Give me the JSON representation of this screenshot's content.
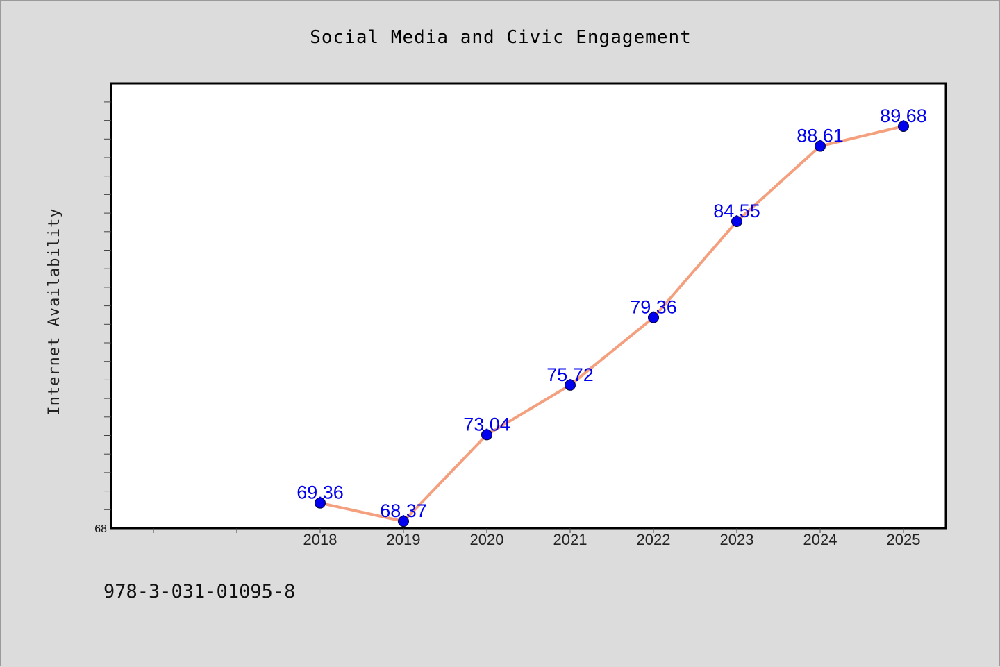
{
  "chart_data": {
    "type": "line",
    "title": "Social Media and Civic Engagement",
    "xlabel": "",
    "ylabel": "Internet Availability",
    "categories": [
      "2018",
      "2019",
      "2020",
      "2021",
      "2022",
      "2023",
      "2024",
      "2025"
    ],
    "series": [
      {
        "values": [
          69.36,
          68.37,
          73.04,
          75.72,
          79.36,
          84.55,
          88.61,
          89.68
        ],
        "data_labels": [
          "69.36",
          "68.37",
          "73.04",
          "75.72",
          "79.36",
          "84.55",
          "88.61",
          "89.68"
        ]
      }
    ],
    "ylim": [
      68,
      92
    ],
    "yticks_labeled": [
      "68"
    ],
    "grid": false,
    "legend": "none",
    "colors": {
      "line": "#f4a07e",
      "marker": "#0000ee",
      "data_label": "#0000ee",
      "background": "#dcdcdc",
      "plot_background": "#ffffff"
    }
  },
  "footer": {
    "code": "978-3-031-01095-8"
  }
}
